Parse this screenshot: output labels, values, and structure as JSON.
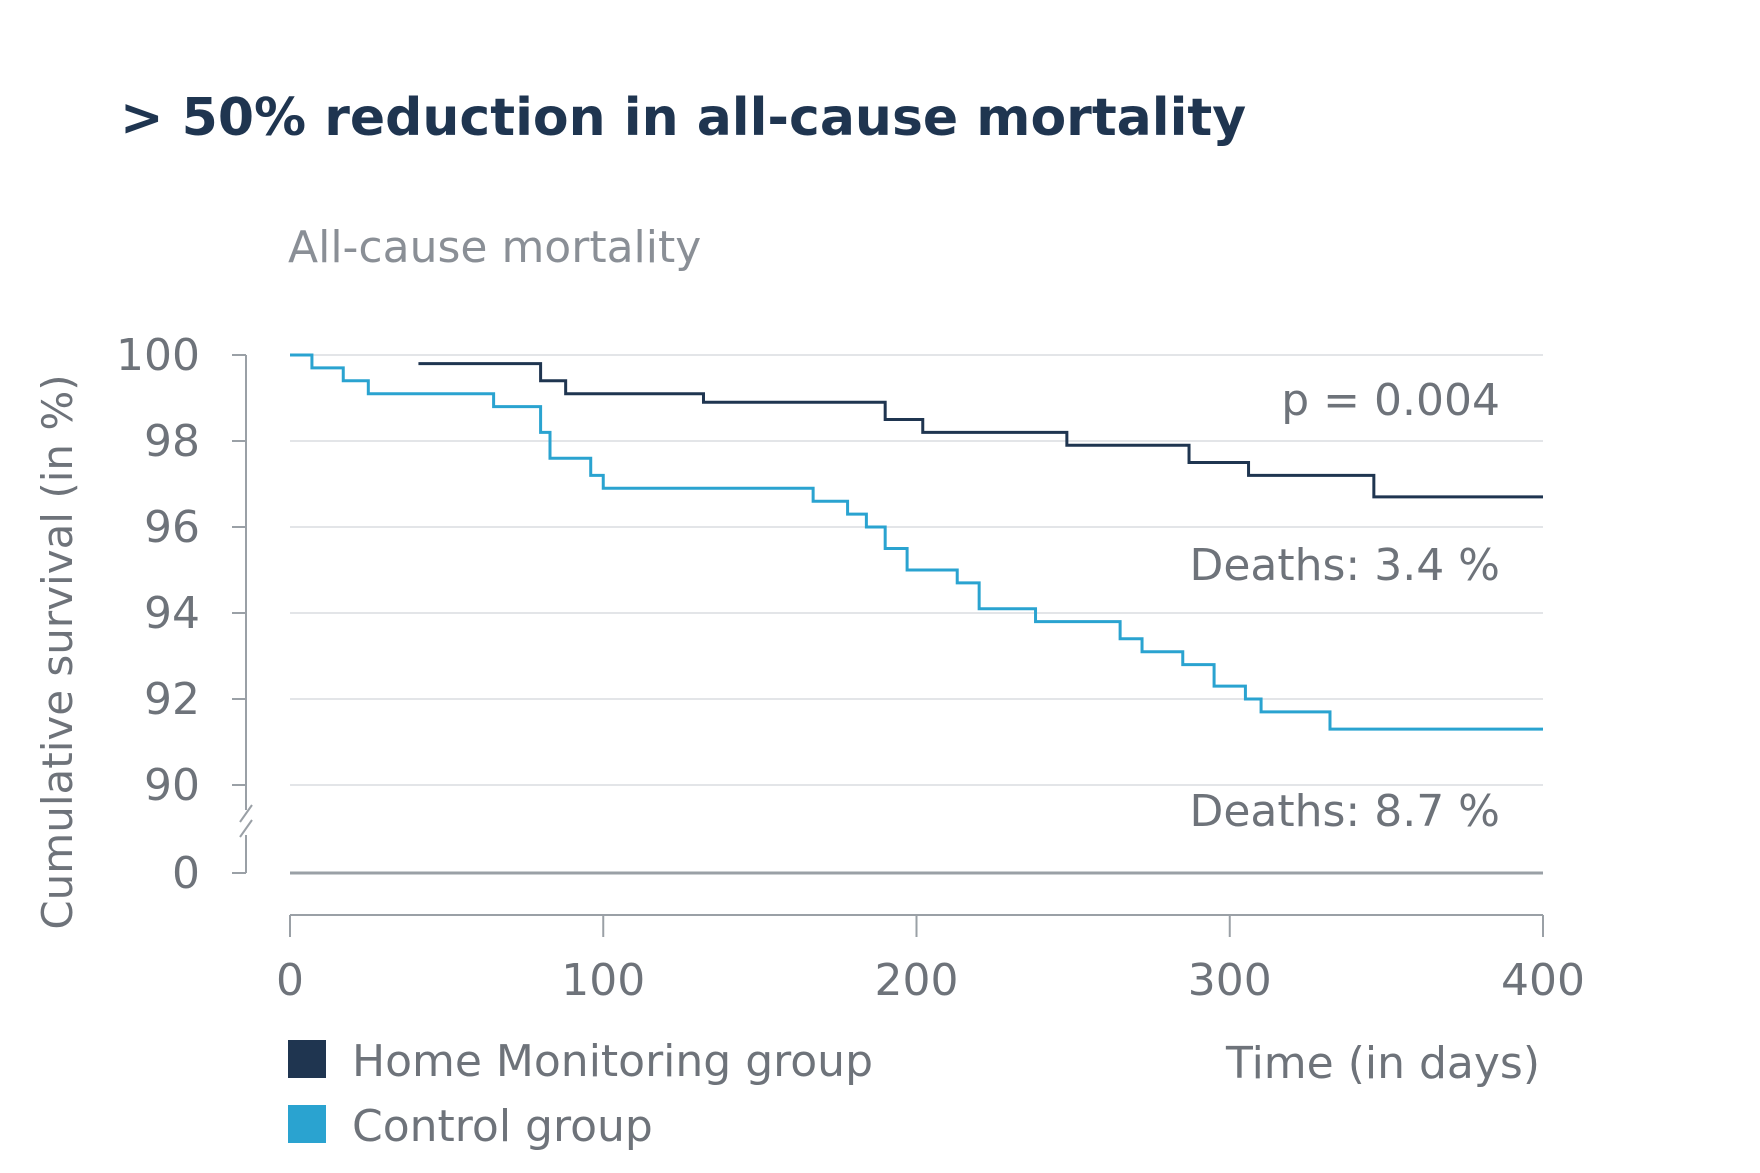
{
  "headline": "> 50% reduction in all-cause mortality",
  "chart_data": {
    "type": "line",
    "step": true,
    "title": "All-cause mortality",
    "ylabel": "Cumulative survival (in %)",
    "xlabel": "Time (in days)",
    "xlim": [
      0,
      400
    ],
    "x_ticks": [
      "0",
      "100",
      "200",
      "300",
      "400"
    ],
    "y_ticks": [
      "100",
      "98",
      "96",
      "94",
      "92",
      "90",
      "0"
    ],
    "ylim": [
      90,
      100
    ],
    "y_axis_break": true,
    "grid": true,
    "legend_position": "bottom-left",
    "annotations": {
      "p_value": "p = 0.004",
      "deaths_home": "Deaths: 3.4 %",
      "deaths_control": "Deaths: 8.7 %"
    },
    "series": [
      {
        "name": "Home Monitoring group",
        "color": "#1f3550",
        "points": [
          [
            41,
            99.8
          ],
          [
            80,
            99.4
          ],
          [
            88,
            99.1
          ],
          [
            132,
            98.9
          ],
          [
            190,
            98.5
          ],
          [
            202,
            98.2
          ],
          [
            248,
            97.9
          ],
          [
            287,
            97.5
          ],
          [
            306,
            97.2
          ],
          [
            346,
            96.7
          ],
          [
            400,
            96.7
          ]
        ]
      },
      {
        "name": "Control group",
        "color": "#2aa3d0",
        "points": [
          [
            0,
            100
          ],
          [
            7,
            99.7
          ],
          [
            17,
            99.4
          ],
          [
            25,
            99.1
          ],
          [
            65,
            98.8
          ],
          [
            80,
            98.2
          ],
          [
            83,
            97.6
          ],
          [
            96,
            97.2
          ],
          [
            100,
            96.9
          ],
          [
            167,
            96.6
          ],
          [
            178,
            96.3
          ],
          [
            184,
            96.0
          ],
          [
            190,
            95.5
          ],
          [
            197,
            95.0
          ],
          [
            213,
            94.7
          ],
          [
            220,
            94.1
          ],
          [
            238,
            93.8
          ],
          [
            265,
            93.4
          ],
          [
            272,
            93.1
          ],
          [
            285,
            92.8
          ],
          [
            295,
            92.3
          ],
          [
            305,
            92.0
          ],
          [
            310,
            91.7
          ],
          [
            332,
            91.3
          ],
          [
            400,
            91.3
          ]
        ]
      }
    ]
  }
}
